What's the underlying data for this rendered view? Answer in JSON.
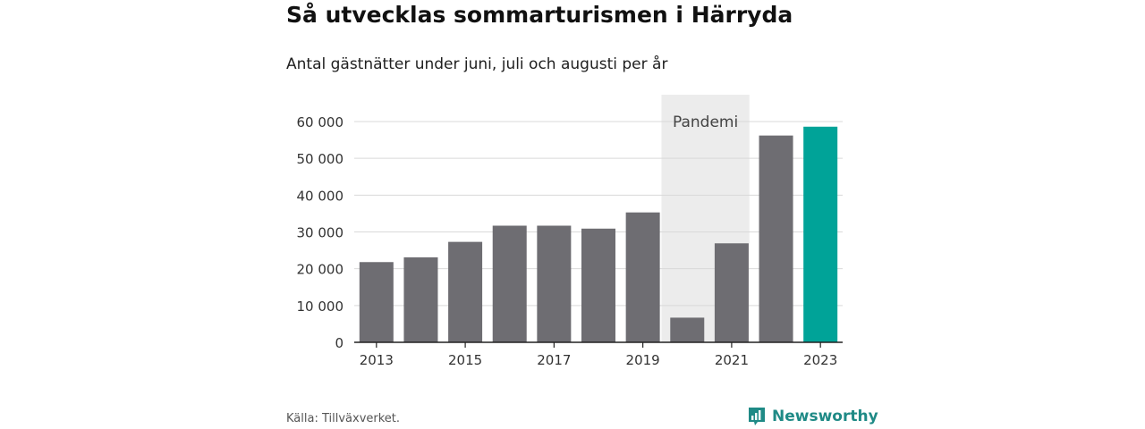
{
  "title": "Så utvecklas sommarturismen i Härryda",
  "subtitle": "Antal gästnätter under juni, juli och augusti per år",
  "source": "Källa: Tillväxverket.",
  "brand": {
    "name": "Newsworthy",
    "icon": "chart-bubble-icon"
  },
  "colors": {
    "bar": "#6e6d72",
    "highlight": "#00a398",
    "shade": "#ececec",
    "grid": "#d9d9d9",
    "axis": "#222222"
  },
  "chart_data": {
    "type": "bar",
    "categories": [
      "2013",
      "2014",
      "2015",
      "2016",
      "2017",
      "2018",
      "2019",
      "2020",
      "2021",
      "2022",
      "2023"
    ],
    "values": [
      21800,
      23100,
      27300,
      31700,
      31700,
      30900,
      35300,
      6700,
      26900,
      56200,
      58600
    ],
    "highlight_category": "2023",
    "ylim": [
      0,
      60000
    ],
    "yticks": [
      0,
      10000,
      20000,
      30000,
      40000,
      50000,
      60000
    ],
    "ytick_labels": [
      "0",
      "10 000",
      "20 000",
      "30 000",
      "40 000",
      "50 000",
      "60 000"
    ],
    "xtick_labels": [
      "2013",
      "2015",
      "2017",
      "2019",
      "2021",
      "2023"
    ],
    "grid": true,
    "annotation": {
      "label": "Pandemi",
      "from": "2020",
      "to": "2021"
    }
  }
}
